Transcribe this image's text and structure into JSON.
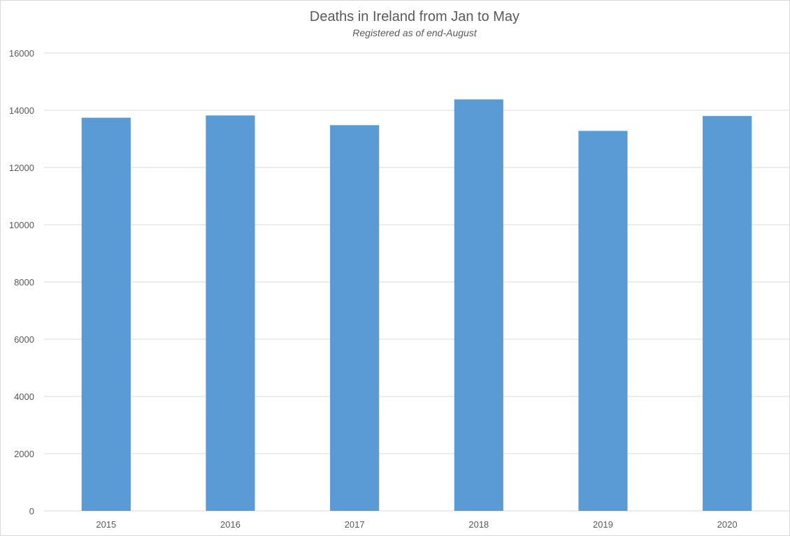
{
  "chart_data": {
    "type": "bar",
    "title": "Deaths in Ireland from Jan to May",
    "subtitle": "Registered as of end-August",
    "xlabel": "",
    "ylabel": "",
    "categories": [
      "2015",
      "2016",
      "2017",
      "2018",
      "2019",
      "2020"
    ],
    "values": [
      13740,
      13820,
      13480,
      14380,
      13280,
      13800
    ],
    "ylim": [
      0,
      16000
    ],
    "yticks": [
      0,
      2000,
      4000,
      6000,
      8000,
      10000,
      12000,
      14000,
      16000
    ],
    "grid": true,
    "legend": "none",
    "bar_color": "#5b9bd5",
    "grid_color": "#d9d9d9",
    "text_color": "#595959"
  }
}
